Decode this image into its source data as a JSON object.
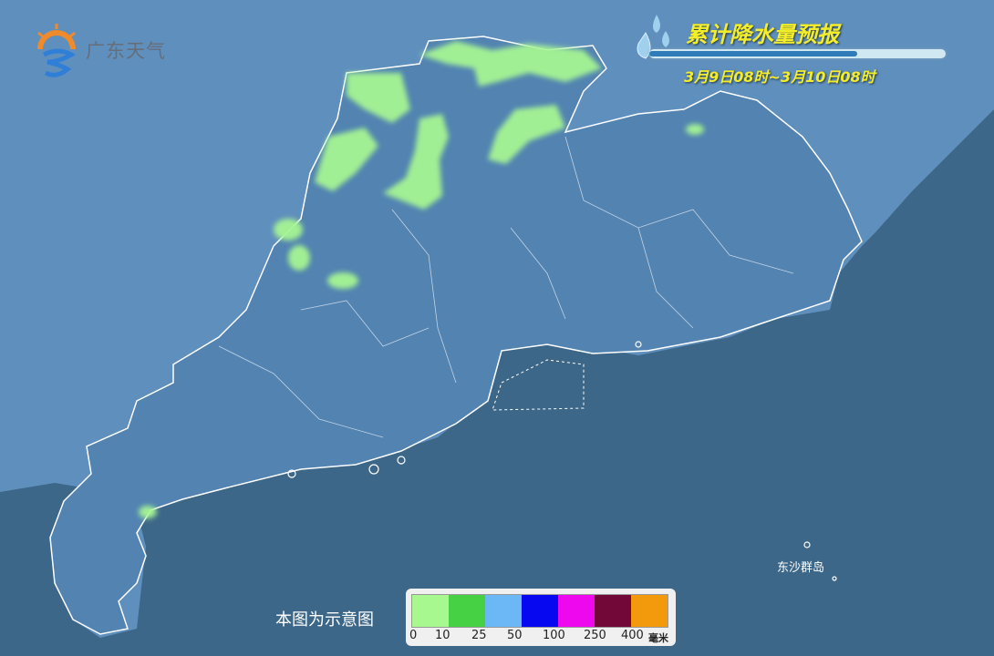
{
  "logo": {
    "text": "广东天气"
  },
  "header": {
    "title": "累计降水量预报",
    "period": "3月9日08时~3月10日08时"
  },
  "map": {
    "land_color": "#5f8fbd",
    "sea_color": "#3d6788",
    "province_color": "#4f7fab",
    "rain_color": "#a6f593",
    "labels": {
      "island": "东沙群岛"
    }
  },
  "note": "本图为示意图",
  "legend": {
    "colors": [
      "#a8f890",
      "#46d044",
      "#6cb8f6",
      "#0808f0",
      "#ee08ee",
      "#720838",
      "#f39a0c"
    ],
    "ticks": [
      "0",
      "10",
      "25",
      "50",
      "100",
      "250",
      "400"
    ],
    "unit": "毫米"
  }
}
